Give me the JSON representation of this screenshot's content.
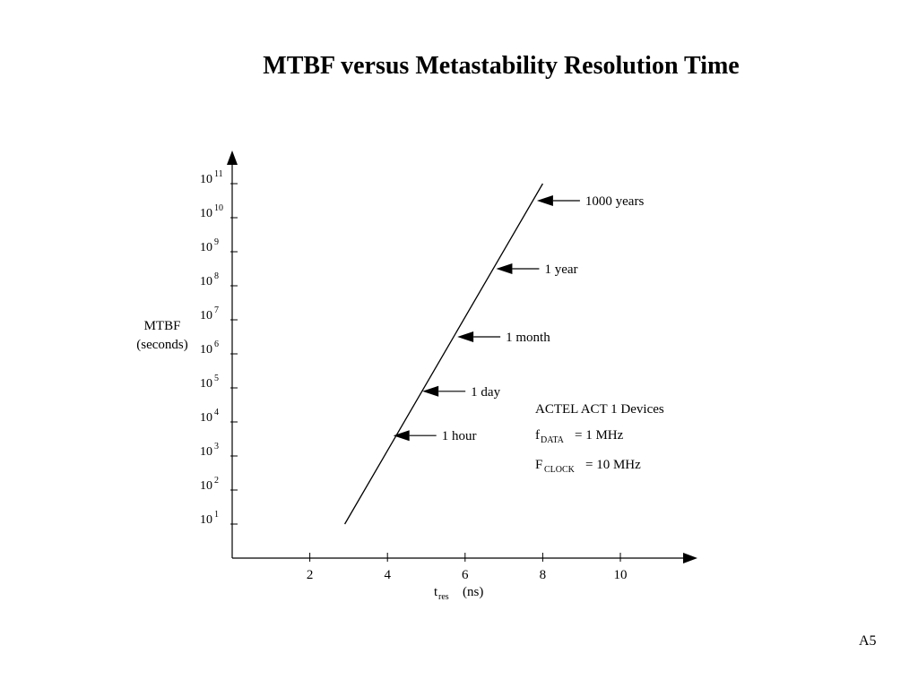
{
  "title": "MTBF versus Metastability Resolution Time",
  "page_number": "A5",
  "chart_data": {
    "type": "line",
    "title": "MTBF versus Metastability Resolution Time",
    "xlabel_main": "t",
    "xlabel_sub": "res",
    "xlabel_unit": "(ns)",
    "ylabel_line1": "MTBF",
    "ylabel_line2": "(seconds)",
    "y_scale": "log10",
    "x_ticks": [
      2,
      4,
      6,
      8,
      10
    ],
    "y_tick_exponents": [
      1,
      2,
      3,
      4,
      5,
      6,
      7,
      8,
      9,
      10,
      11
    ],
    "y_tick_base": "10",
    "xlim": [
      0,
      12
    ],
    "ylim_exponent": [
      0,
      11.5
    ],
    "series": [
      {
        "x": [
          2.9,
          8.0
        ],
        "log10_y": [
          1.0,
          11.0
        ],
        "color": "#000000"
      }
    ],
    "annotations": [
      {
        "label": "1000 years",
        "x": 7.85,
        "log10_y": 10.5
      },
      {
        "label": "1 year",
        "x": 6.8,
        "log10_y": 8.5
      },
      {
        "label": "1 month",
        "x": 5.8,
        "log10_y": 6.5
      },
      {
        "label": "1 day",
        "x": 4.9,
        "log10_y": 4.9
      },
      {
        "label": "1 hour",
        "x": 4.15,
        "log10_y": 3.6
      }
    ],
    "info_box": {
      "heading": "ACTEL ACT 1 Devices",
      "line1_main": "f",
      "line1_sub": "DATA",
      "line1_value": "= 1 MHz",
      "line2_main": "F",
      "line2_sub": "CLOCK",
      "line2_value": "= 10 MHz"
    },
    "grid": false,
    "legend": "none"
  }
}
